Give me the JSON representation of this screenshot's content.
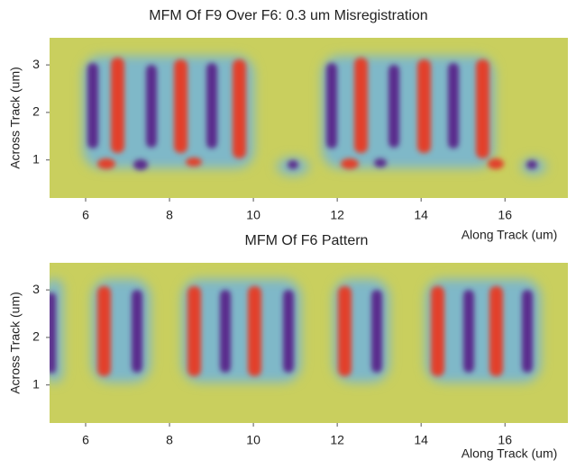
{
  "chart_data": [
    {
      "type": "image",
      "title": "MFM Of F9 Over F6: 0.3 um Misregistration",
      "xlabel": "Along Track (um)",
      "ylabel": "Across Track (um)",
      "xlim": [
        5.14,
        17.5
      ],
      "ylim": [
        0.2,
        3.57
      ],
      "xticks": [
        6,
        8,
        10,
        12,
        14,
        16
      ],
      "yticks": [
        1,
        2,
        3
      ]
    },
    {
      "type": "image",
      "title": "MFM Of F6 Pattern",
      "xlabel": "Along Track (um)",
      "ylabel": "Across Track (um)",
      "xlim": [
        5.14,
        17.5
      ],
      "ylim": [
        0.2,
        3.57
      ],
      "xticks": [
        6,
        8,
        10,
        12,
        14,
        16
      ],
      "yticks": [
        1,
        2,
        3
      ]
    }
  ]
}
